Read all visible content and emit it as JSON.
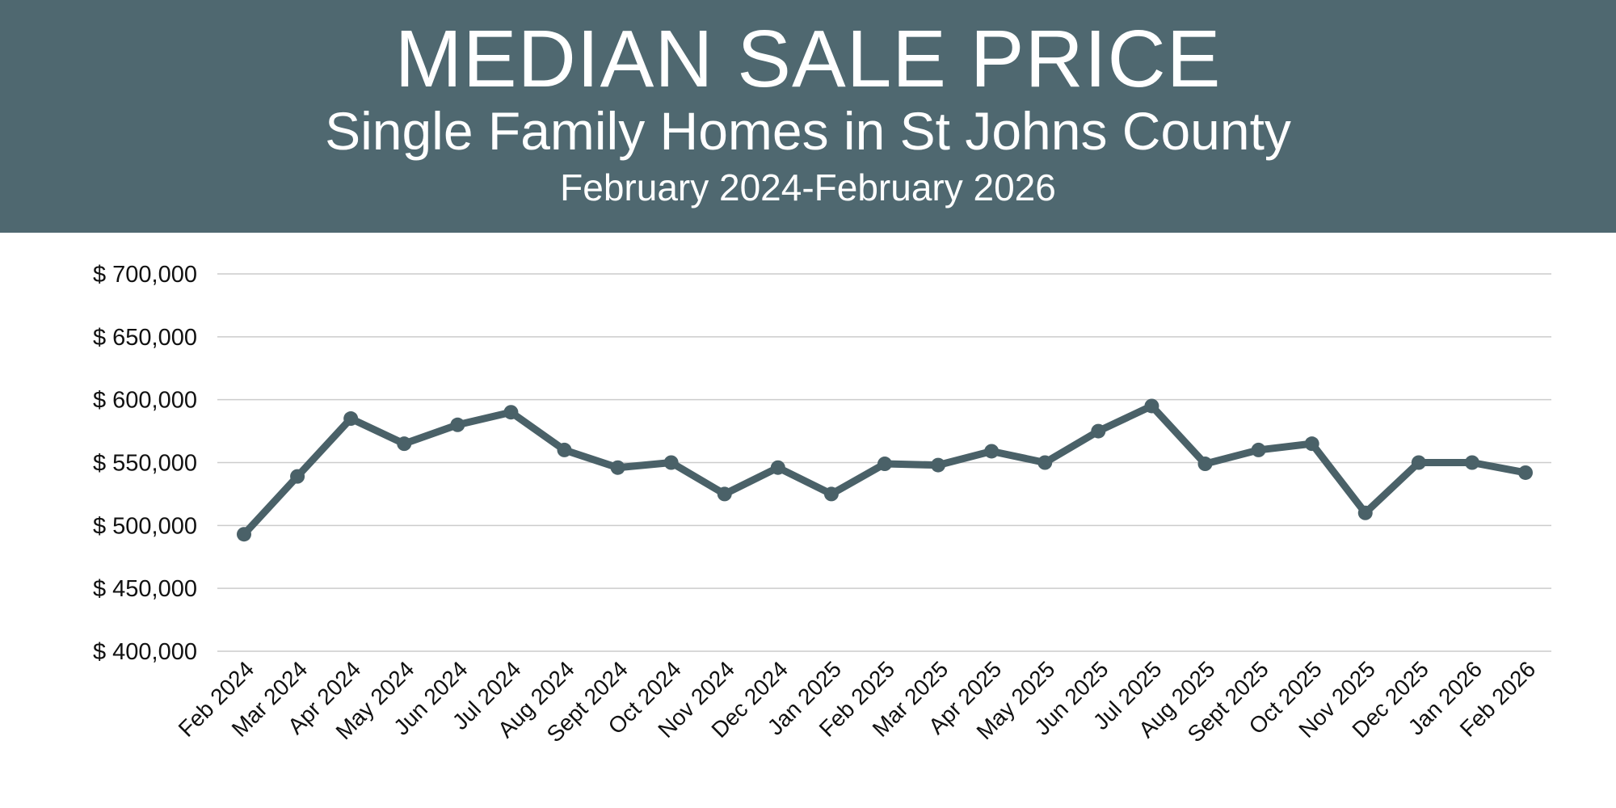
{
  "header": {
    "title": "MEDIAN SALE PRICE",
    "subtitle": "Single Family Homes in St Johns County",
    "date_range": "February 2024-February 2026"
  },
  "colors": {
    "header_bg": "#4f6870",
    "line": "#4a6168",
    "grid": "#cccccc"
  },
  "chart_data": {
    "type": "line",
    "title": "MEDIAN SALE PRICE",
    "xlabel": "",
    "ylabel": "",
    "ylim": [
      400000,
      700000
    ],
    "yticks": [
      400000,
      450000,
      500000,
      550000,
      600000,
      650000,
      700000
    ],
    "ytick_labels": [
      "$ 400,000",
      "$ 450,000",
      "$ 500,000",
      "$ 550,000",
      "$ 600,000",
      "$ 650,000",
      "$ 700,000"
    ],
    "grid": true,
    "categories": [
      "Feb 2024",
      "Mar 2024",
      "Apr 2024",
      "May 2024",
      "Jun 2024",
      "Jul 2024",
      "Aug 2024",
      "Sept 2024",
      "Oct 2024",
      "Nov 2024",
      "Dec 2024",
      "Jan 2025",
      "Feb 2025",
      "Mar 2025",
      "Apr 2025",
      "May 2025",
      "Jun 2025",
      "Jul 2025",
      "Aug 2025",
      "Sept 2025",
      "Oct 2025",
      "Nov 2025",
      "Dec 2025",
      "Jan 2026",
      "Feb 2026"
    ],
    "series": [
      {
        "name": "Median Sale Price",
        "values": [
          493000,
          539000,
          585000,
          565000,
          580000,
          590000,
          560000,
          546000,
          550000,
          525000,
          546000,
          525000,
          549000,
          548000,
          559000,
          550000,
          575000,
          595000,
          549000,
          560000,
          565000,
          510000,
          550000,
          550000,
          542000
        ]
      }
    ]
  }
}
